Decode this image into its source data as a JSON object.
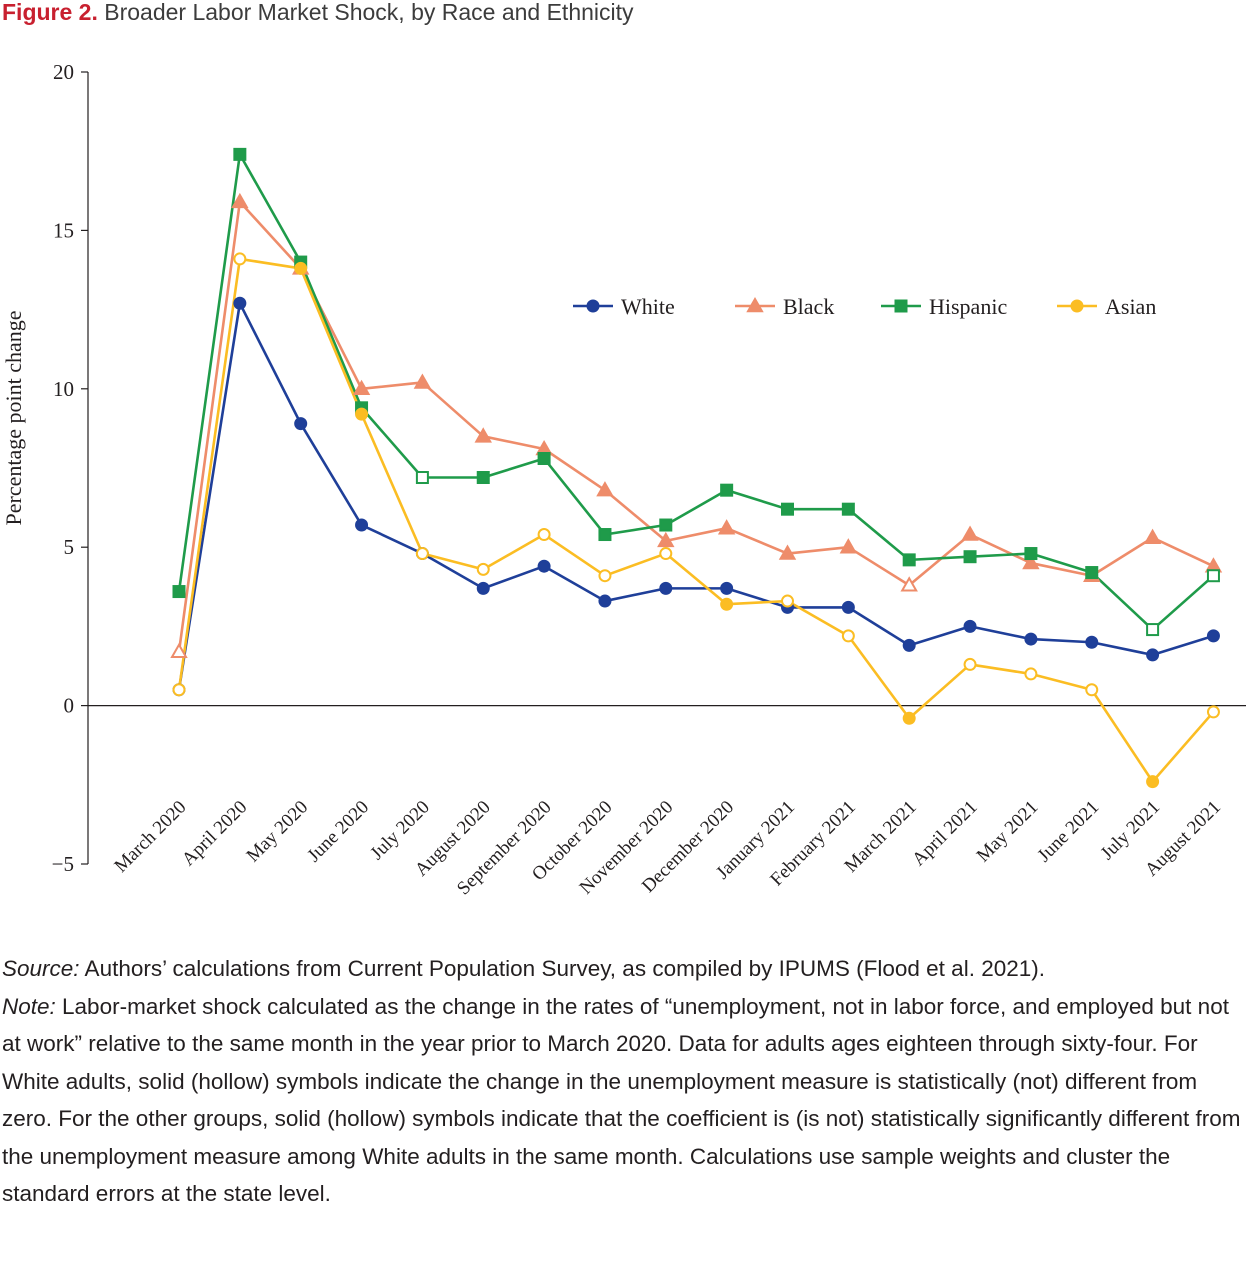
{
  "figure": {
    "number": "Figure 2.",
    "title": "Broader Labor Market Shock, by Race and Ethnicity"
  },
  "chart_data": {
    "type": "line",
    "ylabel": "Percentage point change",
    "xlabel": "",
    "ylim": [
      -5,
      20
    ],
    "yticks": [
      -5,
      0,
      5,
      10,
      15,
      20
    ],
    "ytick_labels": [
      "−5",
      "0",
      "5",
      "10",
      "15",
      "20"
    ],
    "grid": false,
    "zero_line": true,
    "legend_position": "top-right",
    "categories": [
      "March 2020",
      "April 2020",
      "May 2020",
      "June 2020",
      "July 2020",
      "August 2020",
      "September 2020",
      "October 2020",
      "November 2020",
      "December 2020",
      "January 2021",
      "February 2021",
      "March 2021",
      "April 2021",
      "May 2021",
      "June 2021",
      "July 2021",
      "August 2021"
    ],
    "series": [
      {
        "name": "White",
        "marker": "circle",
        "color": "#1f3f99",
        "values": [
          0.5,
          12.7,
          8.9,
          5.7,
          4.8,
          3.7,
          4.4,
          3.3,
          3.7,
          3.7,
          3.1,
          3.1,
          1.9,
          2.5,
          2.1,
          2.0,
          1.6,
          2.2
        ],
        "hollow": [
          false,
          false,
          false,
          false,
          false,
          false,
          false,
          false,
          false,
          false,
          false,
          false,
          false,
          false,
          false,
          false,
          false,
          false
        ]
      },
      {
        "name": "Black",
        "marker": "triangle",
        "color": "#ee8c6a",
        "values": [
          1.7,
          15.9,
          13.8,
          10.0,
          10.2,
          8.5,
          8.1,
          6.8,
          5.2,
          5.6,
          4.8,
          5.0,
          3.8,
          5.4,
          4.5,
          4.1,
          5.3,
          4.4
        ],
        "hollow": [
          true,
          false,
          false,
          false,
          false,
          false,
          false,
          false,
          false,
          false,
          false,
          false,
          true,
          false,
          false,
          false,
          false,
          false
        ]
      },
      {
        "name": "Hispanic",
        "marker": "square",
        "color": "#1f9b4a",
        "values": [
          3.6,
          17.4,
          14.0,
          9.4,
          7.2,
          7.2,
          7.8,
          5.4,
          5.7,
          6.8,
          6.2,
          6.2,
          4.6,
          4.7,
          4.8,
          4.2,
          2.4,
          4.1
        ],
        "hollow": [
          false,
          false,
          false,
          false,
          true,
          false,
          false,
          false,
          false,
          false,
          false,
          false,
          false,
          false,
          false,
          false,
          true,
          true
        ]
      },
      {
        "name": "Asian",
        "marker": "circle",
        "color": "#fbbd23",
        "values": [
          0.5,
          14.1,
          13.8,
          9.2,
          4.8,
          4.3,
          5.4,
          4.1,
          4.8,
          3.2,
          3.3,
          2.2,
          -0.4,
          1.3,
          1.0,
          0.5,
          -2.4,
          -0.2
        ],
        "hollow": [
          true,
          true,
          false,
          false,
          true,
          true,
          true,
          true,
          true,
          false,
          true,
          true,
          false,
          true,
          true,
          true,
          false,
          true
        ]
      }
    ]
  },
  "notes": {
    "source_label": "Source:",
    "source_text": " Authors’ calculations from Current Population Survey, as compiled by IPUMS (Flood et al. 2021).",
    "note_label": "Note:",
    "note_text": " Labor-market shock calculated as the change in the rates of “unemployment, not in labor force, and employed but not at work” relative to the same month in the year prior to March 2020. Data for adults ages eighteen through sixty-four. For White adults, solid (hollow) symbols indicate the change in the unemployment measure is statistically (not) different from zero. For the other groups, solid (hollow) symbols indicate that the coefficient is (is not) statistically significantly different from the unemploy­ment measure among White adults in the same month. Calculations use sample weights and cluster the standard errors at the state level."
  }
}
